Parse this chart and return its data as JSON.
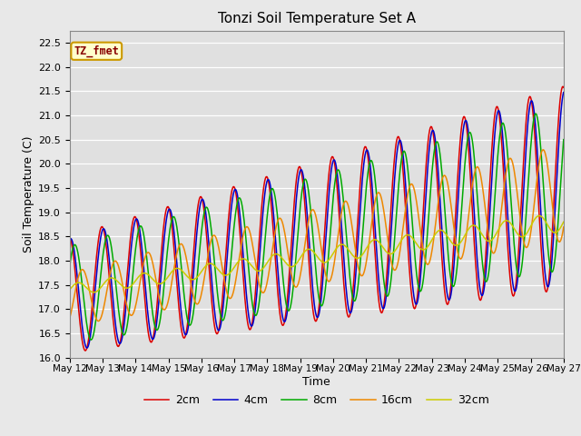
{
  "title": "Tonzi Soil Temperature Set A",
  "xlabel": "Time",
  "ylabel": "Soil Temperature (C)",
  "ylim": [
    16.0,
    22.75
  ],
  "xlim": [
    0,
    360
  ],
  "annotation_label": "TZ_fmet",
  "xtick_labels": [
    "May 12",
    "May 13",
    "May 14",
    "May 15",
    "May 16",
    "May 17",
    "May 18",
    "May 19",
    "May 20",
    "May 21",
    "May 22",
    "May 23",
    "May 24",
    "May 25",
    "May 26",
    "May 27"
  ],
  "legend_labels": [
    "2cm",
    "4cm",
    "8cm",
    "16cm",
    "32cm"
  ],
  "line_colors": [
    "#dd0000",
    "#0000cc",
    "#00aa00",
    "#ee8800",
    "#cccc00"
  ],
  "background_color": "#e0e0e0",
  "plot_bg_color": "#e0e0e0",
  "fig_bg_color": "#e8e8e8"
}
